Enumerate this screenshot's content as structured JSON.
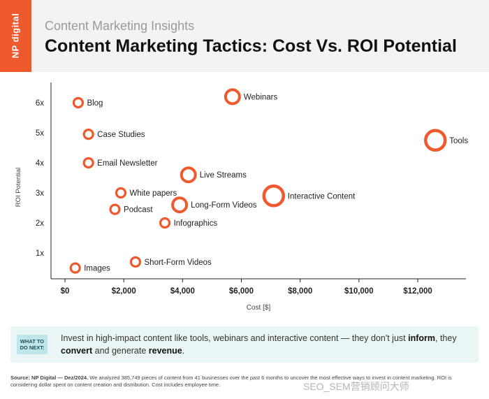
{
  "brand": {
    "logo_text": "NP digital",
    "color": "#ee5a2e"
  },
  "header": {
    "subtitle": "Content Marketing Insights",
    "title": "Content Marketing Tactics: Cost Vs. ROI Potential"
  },
  "chart_data": {
    "type": "scatter",
    "xlabel": "Cost [$]",
    "ylabel": "ROI Potential",
    "xlim": [
      0,
      13500
    ],
    "ylim": [
      0,
      6.7
    ],
    "x_ticks": [
      0,
      2000,
      4000,
      6000,
      8000,
      10000,
      12000
    ],
    "x_tick_labels": [
      "$0",
      "$2,000",
      "$4,000",
      "$6,000",
      "$8,000",
      "$10,000",
      "$12,000"
    ],
    "y_ticks": [
      1,
      2,
      3,
      4,
      5,
      6
    ],
    "y_tick_labels": [
      "1x",
      "2x",
      "3x",
      "4x",
      "5x",
      "6x"
    ],
    "grid": false,
    "marker_color": "#ee5a2e",
    "points": [
      {
        "label": "Blog",
        "x": 450,
        "y": 6.0,
        "size": "small"
      },
      {
        "label": "Webinars",
        "x": 5700,
        "y": 6.2,
        "size": "medium"
      },
      {
        "label": "Case Studies",
        "x": 800,
        "y": 4.95,
        "size": "small"
      },
      {
        "label": "Tools",
        "x": 12600,
        "y": 4.75,
        "size": "large"
      },
      {
        "label": "Email Newsletter",
        "x": 800,
        "y": 4.0,
        "size": "small"
      },
      {
        "label": "Live Streams",
        "x": 4200,
        "y": 3.6,
        "size": "medium"
      },
      {
        "label": "White papers",
        "x": 1900,
        "y": 3.0,
        "size": "small"
      },
      {
        "label": "Interactive Content",
        "x": 7100,
        "y": 2.9,
        "size": "large"
      },
      {
        "label": "Podcast",
        "x": 1700,
        "y": 2.45,
        "size": "small"
      },
      {
        "label": "Long-Form Videos",
        "x": 3900,
        "y": 2.6,
        "size": "medium"
      },
      {
        "label": "Infographics",
        "x": 3400,
        "y": 2.0,
        "size": "small"
      },
      {
        "label": "Short-Form Videos",
        "x": 2400,
        "y": 0.7,
        "size": "small"
      },
      {
        "label": "Images",
        "x": 350,
        "y": 0.5,
        "size": "small"
      }
    ]
  },
  "callout": {
    "badge_line1": "WHAT TO",
    "badge_line2": "DO NEXT:",
    "text_1": "Invest in high-impact content like tools, webinars and interactive content — they don't just ",
    "bold_1": "inform",
    "text_2": ", they ",
    "bold_2": "convert",
    "text_3": " and generate ",
    "bold_3": "revenue",
    "text_4": "."
  },
  "source": {
    "label": "Source:",
    "org": "NP Digital — Dez/2024.",
    "text": " We analyzed 385,749 pieces of content from 41 businesses over the past 6 months to uncover the most effective ways to invest in content marketing. ROI is considering dollar spent on content creation and distribution. Cost includes employee time."
  },
  "watermark": "SEO_SEM营销顾问大师"
}
